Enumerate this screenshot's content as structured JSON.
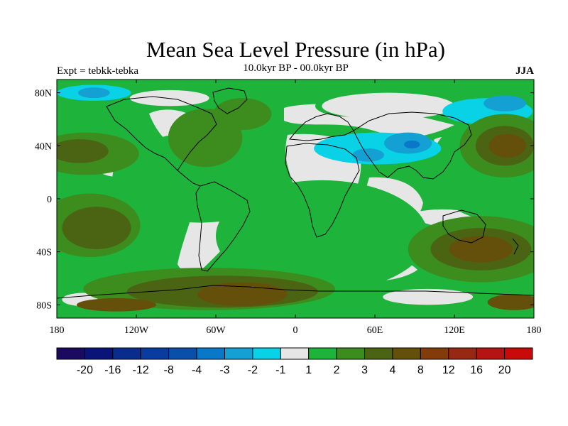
{
  "chart_data": {
    "type": "heatmap",
    "title": "Mean Sea Level Pressure (in hPa)",
    "experiment": "Expt = tebkk-tebka",
    "period": "10.0kyr BP - 00.0kyr BP",
    "season": "JJA",
    "x_ticks": [
      "180",
      "120W",
      "60W",
      "0",
      "60E",
      "120E",
      "180"
    ],
    "x_tick_values": [
      -180,
      -120,
      -60,
      0,
      60,
      120,
      180
    ],
    "y_ticks": [
      "80N",
      "40N",
      "0",
      "40S",
      "80S"
    ],
    "y_tick_values": [
      80,
      40,
      0,
      -40,
      -80
    ],
    "xlim": [
      -180,
      180
    ],
    "ylim": [
      -90,
      90
    ],
    "colorbar": {
      "labels": [
        "-20",
        "-16",
        "-12",
        "-8",
        "-4",
        "-3",
        "-2",
        "-1",
        "1",
        "2",
        "3",
        "4",
        "8",
        "12",
        "16",
        "20"
      ],
      "colors": [
        "#1a0a60",
        "#0a1478",
        "#0a2c8c",
        "#0a3ca0",
        "#0a50aa",
        "#0a78c8",
        "#14a0d2",
        "#0ad2e6",
        "#e6e6e6",
        "#1eb43c",
        "#3c8c1e",
        "#4b6414",
        "#64500a",
        "#823c0a",
        "#962814",
        "#b41414",
        "#c80a0a"
      ]
    },
    "regions": [
      {
        "level": 1,
        "shape": "blob",
        "lon": -72,
        "lat": 16,
        "rx": 66,
        "ry": 34,
        "color": "#1eb43c"
      },
      {
        "level": 1,
        "shape": "blob",
        "lon": 20,
        "lat": -28,
        "rx": 80,
        "ry": 42,
        "color": "#1eb43c"
      },
      {
        "level": 1,
        "shape": "blob",
        "lon": 150,
        "lat": 24,
        "rx": 48,
        "ry": 40,
        "color": "#1eb43c"
      },
      {
        "level": 1,
        "shape": "blob",
        "lon": -160,
        "lat": -25,
        "rx": 40,
        "ry": 30,
        "color": "#1eb43c"
      },
      {
        "level": 1,
        "shape": "blob",
        "lon": 40,
        "lat": 70,
        "rx": 25,
        "ry": 8,
        "color": "#1eb43c"
      },
      {
        "level": 2,
        "shape": "blob",
        "lon": -158,
        "lat": 34,
        "rx": 40,
        "ry": 16,
        "color": "#3c8c1e"
      },
      {
        "level": 2,
        "shape": "blob",
        "lon": -68,
        "lat": 46,
        "rx": 28,
        "ry": 22,
        "color": "#3c8c1e"
      },
      {
        "level": 2,
        "shape": "blob",
        "lon": -40,
        "lat": 64,
        "rx": 22,
        "ry": 12,
        "color": "#3c8c1e"
      },
      {
        "level": 2,
        "shape": "blob",
        "lon": 158,
        "lat": 40,
        "rx": 34,
        "ry": 24,
        "color": "#3c8c1e"
      },
      {
        "level": 2,
        "shape": "blob",
        "lon": -155,
        "lat": -20,
        "rx": 38,
        "ry": 24,
        "color": "#3c8c1e"
      },
      {
        "level": 2,
        "shape": "blob",
        "lon": 140,
        "lat": -38,
        "rx": 55,
        "ry": 25,
        "color": "#3c8c1e"
      },
      {
        "level": 2,
        "shape": "blob",
        "lon": -65,
        "lat": -68,
        "rx": 95,
        "ry": 16,
        "color": "#3c8c1e"
      },
      {
        "level": 3,
        "shape": "blob",
        "lon": -163,
        "lat": 36,
        "rx": 22,
        "ry": 9,
        "color": "#4b6414"
      },
      {
        "level": 3,
        "shape": "blob",
        "lon": 158,
        "lat": 40,
        "rx": 22,
        "ry": 15,
        "color": "#4b6414"
      },
      {
        "level": 3,
        "shape": "blob",
        "lon": -150,
        "lat": -22,
        "rx": 26,
        "ry": 16,
        "color": "#4b6414"
      },
      {
        "level": 3,
        "shape": "blob",
        "lon": 140,
        "lat": -38,
        "rx": 38,
        "ry": 16,
        "color": "#4b6414"
      },
      {
        "level": 3,
        "shape": "blob",
        "lon": -55,
        "lat": -70,
        "rx": 72,
        "ry": 12,
        "color": "#4b6414"
      },
      {
        "level": 4,
        "shape": "blob",
        "lon": 160,
        "lat": 40,
        "rx": 14,
        "ry": 9,
        "color": "#64500a"
      },
      {
        "level": 4,
        "shape": "blob",
        "lon": 140,
        "lat": -38,
        "rx": 24,
        "ry": 10,
        "color": "#64500a"
      },
      {
        "level": 4,
        "shape": "blob",
        "lon": -40,
        "lat": -72,
        "rx": 34,
        "ry": 9,
        "color": "#64500a"
      },
      {
        "level": 4,
        "shape": "blob",
        "lon": -135,
        "lat": -80,
        "rx": 30,
        "ry": 5,
        "color": "#64500a"
      },
      {
        "level": 4,
        "shape": "blob",
        "lon": 165,
        "lat": -78,
        "rx": 20,
        "ry": 6,
        "color": "#64500a"
      },
      {
        "level": 1,
        "shape": "blob",
        "lon": -160,
        "lat": -76,
        "rx": 16,
        "ry": 5,
        "color": "#e6e6e6"
      },
      {
        "level": 1,
        "shape": "blob",
        "lon": 100,
        "lat": -74,
        "rx": 34,
        "ry": 6,
        "color": "#e6e6e6"
      },
      {
        "level": 1,
        "shape": "blob",
        "lon": 70,
        "lat": 70,
        "rx": 50,
        "ry": 10,
        "color": "#e6e6e6"
      },
      {
        "level": 1,
        "shape": "blob",
        "lon": -95,
        "lat": 76,
        "rx": 30,
        "ry": 6,
        "color": "#e6e6e6"
      },
      {
        "level": -1,
        "shape": "blob",
        "lon": 62,
        "lat": 38,
        "rx": 48,
        "ry": 12,
        "color": "#0ad2e6"
      },
      {
        "level": -1,
        "shape": "blob",
        "lon": 145,
        "lat": 66,
        "rx": 34,
        "ry": 10,
        "color": "#0ad2e6"
      },
      {
        "level": -1,
        "shape": "blob",
        "lon": -152,
        "lat": 80,
        "rx": 28,
        "ry": 6,
        "color": "#0ad2e6"
      },
      {
        "level": -2,
        "shape": "blob",
        "lon": 85,
        "lat": 42,
        "rx": 18,
        "ry": 8,
        "color": "#14a0d2"
      },
      {
        "level": -2,
        "shape": "blob",
        "lon": 55,
        "lat": 33,
        "rx": 12,
        "ry": 5,
        "color": "#14a0d2"
      },
      {
        "level": -2,
        "shape": "blob",
        "lon": 158,
        "lat": 72,
        "rx": 16,
        "ry": 6,
        "color": "#14a0d2"
      },
      {
        "level": -2,
        "shape": "blob",
        "lon": -152,
        "lat": 80,
        "rx": 12,
        "ry": 4,
        "color": "#14a0d2"
      },
      {
        "level": -3,
        "shape": "blob",
        "lon": 88,
        "lat": 41,
        "rx": 6,
        "ry": 3,
        "color": "#0a78c8"
      }
    ]
  }
}
